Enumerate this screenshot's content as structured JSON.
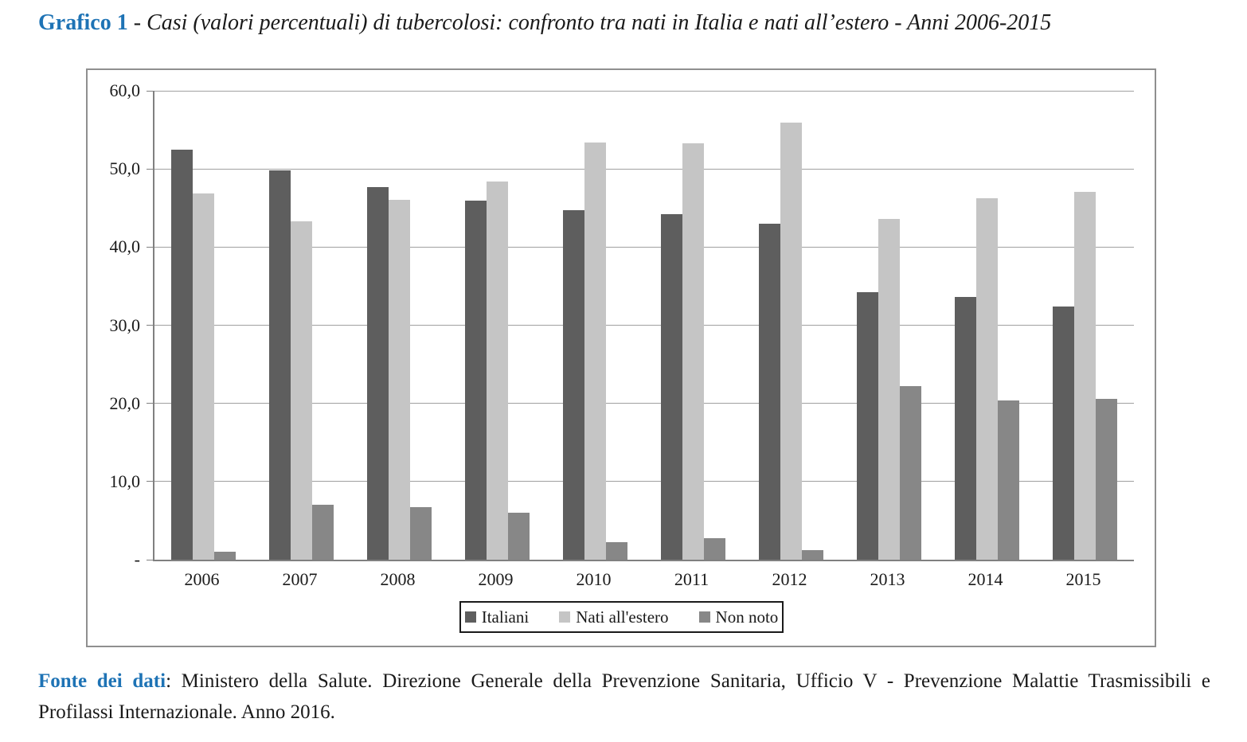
{
  "title": {
    "prefix": "Grafico 1",
    "separator": " - ",
    "text": "Casi (valori percentuali) di tubercolosi: confronto tra nati in Italia e nati all’estero - Anni 2006-2015"
  },
  "footer": {
    "label": "Fonte dei dati",
    "line1": ": Ministero della Salute. Direzione Generale della Prevenzione Sanitaria, Ufficio V - Prevenzione Malattie Trasmissibili e",
    "line2": "Profilassi Internazionale. Anno 2016."
  },
  "colors": {
    "accent_blue": "#1e73b5",
    "italiani": "#5e5e5e",
    "nati_estero": "#c5c5c5",
    "non_noto": "#878787",
    "gridline": "#a0a0a0",
    "axis": "#808080",
    "frame_border": "#8f8f8f",
    "legend_border": "#1a1a1a"
  },
  "chart_data": {
    "type": "bar",
    "title": "Grafico 1 - Casi (valori percentuali) di tubercolosi: confronto tra nati in Italia e nati all'estero - Anni 2006-2015",
    "categories": [
      "2006",
      "2007",
      "2008",
      "2009",
      "2010",
      "2011",
      "2012",
      "2013",
      "2014",
      "2015"
    ],
    "series": [
      {
        "name": "Italiani",
        "color": "#5e5e5e",
        "values": [
          52.5,
          49.8,
          47.7,
          45.9,
          44.7,
          44.2,
          43.0,
          34.2,
          33.6,
          32.4
        ]
      },
      {
        "name": "Nati all'estero",
        "color": "#c5c5c5",
        "values": [
          46.9,
          43.3,
          46.0,
          48.4,
          53.4,
          53.3,
          55.9,
          43.6,
          46.2,
          47.1
        ]
      },
      {
        "name": "Non noto",
        "color": "#878787",
        "values": [
          1.0,
          7.0,
          6.7,
          6.0,
          2.2,
          2.8,
          1.2,
          22.2,
          20.4,
          20.6
        ]
      }
    ],
    "xlabel": "",
    "ylabel": "",
    "ylim": [
      0,
      60
    ],
    "yticks": {
      "values": [
        60,
        50,
        40,
        30,
        20,
        10,
        0
      ],
      "labels": [
        "60,0",
        "50,0",
        "40,0",
        "30,0",
        "20,0",
        "10,0",
        "-"
      ]
    },
    "grid": "horizontal",
    "legend_position": "bottom-center"
  }
}
